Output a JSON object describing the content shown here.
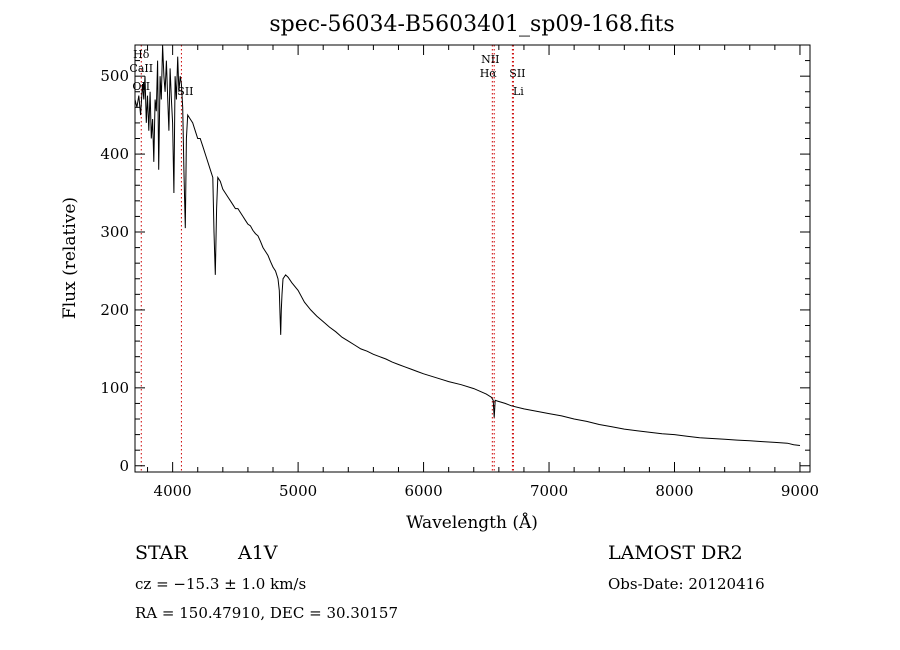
{
  "chart_data": {
    "type": "line",
    "title": "spec-56034-B5603401_sp09-168.fits",
    "xlabel": "Wavelength (Å)",
    "ylabel": "Flux (relative)",
    "xlim": [
      3700,
      9080
    ],
    "ylim": [
      -8,
      540
    ],
    "xticks": [
      4000,
      5000,
      6000,
      7000,
      8000,
      9000
    ],
    "yticks": [
      0,
      100,
      200,
      300,
      400,
      500
    ],
    "grid": false,
    "series": [
      {
        "color": "#000000",
        "x": [
          3700,
          3715,
          3730,
          3745,
          3760,
          3770,
          3780,
          3790,
          3800,
          3810,
          3820,
          3830,
          3840,
          3850,
          3860,
          3870,
          3880,
          3889,
          3900,
          3910,
          3920,
          3930,
          3940,
          3950,
          3960,
          3970,
          3980,
          3990,
          4000,
          4010,
          4020,
          4030,
          4040,
          4050,
          4060,
          4070,
          4080,
          4090,
          4101,
          4110,
          4120,
          4140,
          4160,
          4180,
          4200,
          4220,
          4240,
          4260,
          4280,
          4300,
          4320,
          4330,
          4340,
          4350,
          4360,
          4380,
          4400,
          4420,
          4440,
          4460,
          4480,
          4500,
          4520,
          4540,
          4560,
          4580,
          4600,
          4620,
          4640,
          4660,
          4680,
          4700,
          4720,
          4740,
          4760,
          4780,
          4800,
          4820,
          4840,
          4850,
          4856,
          4861,
          4866,
          4872,
          4880,
          4900,
          4920,
          4950,
          5000,
          5050,
          5100,
          5150,
          5200,
          5250,
          5300,
          5350,
          5400,
          5450,
          5500,
          5550,
          5600,
          5650,
          5700,
          5750,
          5800,
          5850,
          5900,
          5950,
          6000,
          6100,
          6200,
          6300,
          6400,
          6500,
          6540,
          6555,
          6563,
          6571,
          6590,
          6650,
          6700,
          6800,
          6900,
          7000,
          7100,
          7200,
          7300,
          7400,
          7500,
          7600,
          7700,
          7800,
          7900,
          8000,
          8100,
          8200,
          8300,
          8400,
          8500,
          8600,
          8700,
          8800,
          8900,
          8950,
          9000
        ],
        "y": [
          470,
          460,
          475,
          450,
          490,
          470,
          500,
          440,
          475,
          430,
          480,
          420,
          445,
          390,
          470,
          455,
          520,
          380,
          500,
          470,
          540,
          500,
          480,
          520,
          475,
          430,
          510,
          470,
          440,
          350,
          500,
          470,
          525,
          480,
          500,
          490,
          460,
          380,
          305,
          420,
          450,
          445,
          440,
          430,
          420,
          420,
          410,
          400,
          390,
          380,
          370,
          300,
          245,
          330,
          370,
          365,
          355,
          350,
          345,
          340,
          335,
          330,
          330,
          325,
          320,
          315,
          310,
          308,
          302,
          298,
          295,
          288,
          280,
          275,
          270,
          262,
          255,
          250,
          240,
          225,
          195,
          168,
          200,
          220,
          240,
          245,
          242,
          235,
          225,
          210,
          200,
          192,
          185,
          178,
          172,
          165,
          160,
          155,
          150,
          147,
          143,
          140,
          137,
          133,
          130,
          127,
          124,
          121,
          118,
          113,
          108,
          104,
          99,
          92,
          88,
          84,
          62,
          84,
          83,
          80,
          77,
          73,
          70,
          67,
          64,
          60,
          57,
          53,
          50,
          47,
          45,
          43,
          41,
          40,
          38,
          36,
          35,
          34,
          33,
          32,
          31,
          30,
          29,
          27,
          26
        ]
      }
    ],
    "lines": [
      {
        "x": 3750,
        "labels": [
          "Hδ",
          "CaII",
          "OII"
        ]
      },
      {
        "x": 4070,
        "labels": [
          "SII"
        ]
      },
      {
        "x": 6548,
        "labels": [
          "NII"
        ]
      },
      {
        "x": 6563,
        "labels": [
          "Hα"
        ]
      },
      {
        "x": 6716,
        "labels": [
          "SII"
        ]
      },
      {
        "x": 6708,
        "labels": [
          "Li"
        ]
      }
    ],
    "line_color": "#cc0000"
  },
  "info": {
    "class_label": "STAR",
    "subclass": "A1V",
    "redshift": "cz = −15.3 ± 1.0 km/s",
    "coords": "RA = 150.47910, DEC =  30.30157",
    "survey": "LAMOST DR2",
    "obs_date": "Obs-Date: 20120416"
  }
}
